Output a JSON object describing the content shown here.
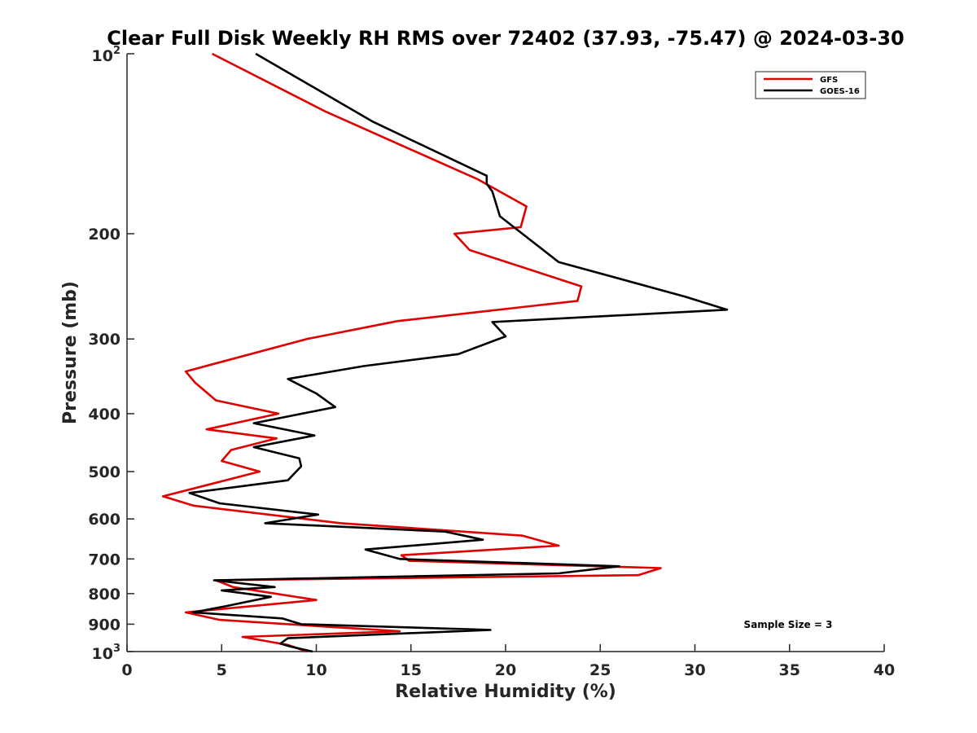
{
  "chart_data": {
    "type": "line",
    "title": "Clear Full Disk Weekly RH RMS over 72402 (37.93, -75.47) @ 2024-03-30",
    "xlabel": "Relative Humidity (%)",
    "ylabel": "Pressure (mb)",
    "xlim": [
      0,
      40
    ],
    "ylim": [
      100,
      1000
    ],
    "yscale": "log",
    "yreversed": true,
    "x_ticks": [
      0,
      5,
      10,
      15,
      20,
      25,
      30,
      35,
      40
    ],
    "x_tick_labels": [
      "0",
      "5",
      "10",
      "15",
      "20",
      "25",
      "30",
      "35",
      "40"
    ],
    "y_ticks": [
      200,
      300,
      400,
      500,
      600,
      700,
      800,
      900
    ],
    "y_tick_labels": [
      "200",
      "300",
      "400",
      "500",
      "600",
      "700",
      "800",
      "900"
    ],
    "y_min_label": {
      "base": "10",
      "exp": "2"
    },
    "y_max_label": {
      "base": "10",
      "exp": "3"
    },
    "grid": false,
    "legend_position": "top-right",
    "annotation": "Sample Size = 3",
    "series": [
      {
        "name": "GFS",
        "color": "#e00000",
        "x": [
          4.5,
          10.5,
          18.5,
          21.1,
          20.8,
          17.3,
          18.1,
          24.0,
          23.8,
          14.3,
          9.5,
          3.1,
          3.6,
          4.7,
          8.0,
          4.2,
          7.9,
          5.5,
          5.0,
          7.0,
          1.9,
          3.5,
          11.3,
          20.9,
          22.8,
          14.5,
          14.9,
          28.2,
          27.0,
          4.7,
          5.6,
          10.0,
          3.1,
          4.9,
          14.4,
          6.1,
          8.5,
          9.5
        ],
        "y": [
          100,
          125,
          162,
          180,
          195,
          200,
          213,
          245,
          259,
          280,
          300,
          340,
          355,
          380,
          400,
          425,
          440,
          460,
          480,
          500,
          550,
          570,
          610,
          640,
          665,
          690,
          705,
          725,
          745,
          760,
          780,
          820,
          860,
          885,
          925,
          945,
          975,
          1000
        ]
      },
      {
        "name": "GOES-16",
        "color": "#000000",
        "x": [
          6.8,
          13.0,
          19.0,
          19.0,
          19.3,
          19.7,
          22.8,
          29.5,
          31.7,
          19.3,
          20.0,
          17.5,
          12.5,
          8.5,
          10.0,
          11.0,
          6.7,
          9.9,
          6.7,
          9.1,
          9.2,
          8.5,
          3.3,
          4.9,
          10.1,
          7.3,
          16.8,
          18.8,
          12.6,
          14.4,
          26.0,
          22.8,
          4.6,
          7.8,
          5.0,
          7.6,
          5.2,
          3.5,
          8.2,
          9.2,
          19.2,
          8.5,
          8.1,
          8.6,
          9.8
        ],
        "y": [
          100,
          130,
          160,
          165,
          170,
          187,
          223,
          255,
          268,
          281,
          297,
          318,
          333,
          350,
          370,
          390,
          415,
          435,
          455,
          475,
          490,
          517,
          543,
          565,
          590,
          610,
          630,
          650,
          675,
          700,
          720,
          740,
          760,
          780,
          790,
          810,
          840,
          860,
          880,
          900,
          920,
          950,
          970,
          980,
          1000
        ]
      }
    ]
  }
}
